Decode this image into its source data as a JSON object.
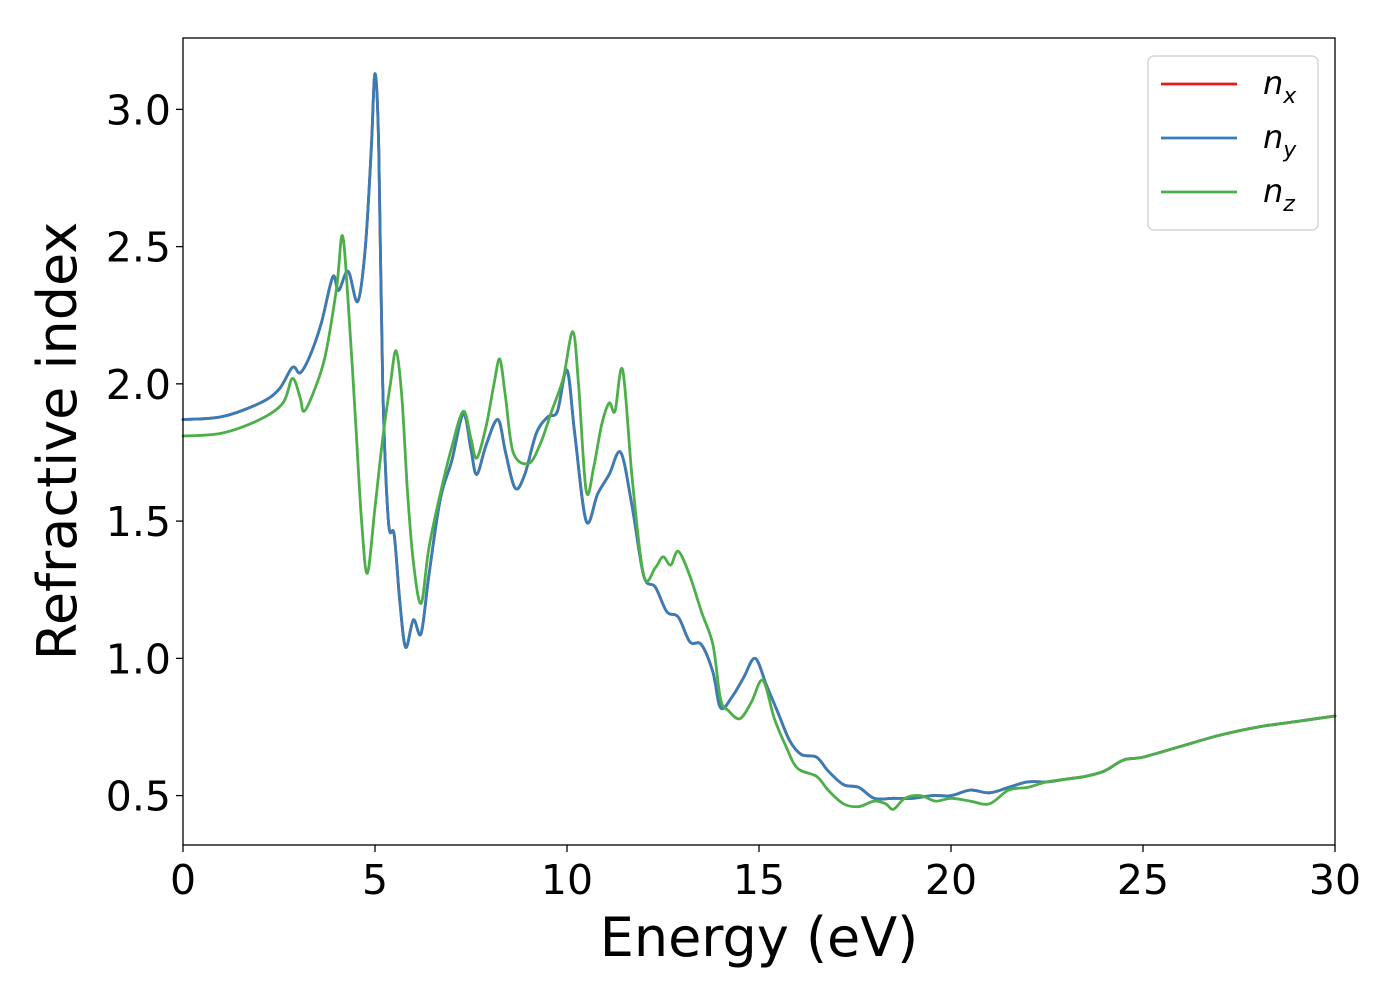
{
  "chart_data": {
    "type": "line",
    "xlabel": "Energy (eV)",
    "ylabel": "Refractive index",
    "xlim": [
      0,
      30
    ],
    "ylim": [
      0.32,
      3.26
    ],
    "xticks": [
      0,
      5,
      10,
      15,
      20,
      25,
      30
    ],
    "xtick_labels": [
      "0",
      "5",
      "10",
      "15",
      "20",
      "25",
      "30"
    ],
    "yticks": [
      0.5,
      1.0,
      1.5,
      2.0,
      2.5,
      3.0
    ],
    "ytick_labels": [
      "0.5",
      "1.0",
      "1.5",
      "2.0",
      "2.5",
      "3.0"
    ],
    "grid": false,
    "legend_position": "top-right",
    "series": [
      {
        "name": "n_x",
        "label_main": "n",
        "label_sub": "x",
        "color": "#e41a1c",
        "points": [
          [
            0,
            1.87
          ],
          [
            1,
            1.88
          ],
          [
            2,
            1.93
          ],
          [
            2.5,
            1.98
          ],
          [
            2.85,
            2.06
          ],
          [
            3.05,
            2.04
          ],
          [
            3.3,
            2.1
          ],
          [
            3.6,
            2.22
          ],
          [
            3.9,
            2.39
          ],
          [
            4.05,
            2.34
          ],
          [
            4.3,
            2.41
          ],
          [
            4.55,
            2.3
          ],
          [
            4.75,
            2.5
          ],
          [
            4.9,
            2.85
          ],
          [
            5.0,
            3.13
          ],
          [
            5.1,
            2.85
          ],
          [
            5.2,
            2.0
          ],
          [
            5.35,
            1.5
          ],
          [
            5.5,
            1.45
          ],
          [
            5.65,
            1.2
          ],
          [
            5.8,
            1.04
          ],
          [
            6.0,
            1.14
          ],
          [
            6.2,
            1.09
          ],
          [
            6.4,
            1.3
          ],
          [
            6.7,
            1.58
          ],
          [
            7.0,
            1.72
          ],
          [
            7.3,
            1.89
          ],
          [
            7.5,
            1.76
          ],
          [
            7.65,
            1.67
          ],
          [
            7.9,
            1.78
          ],
          [
            8.2,
            1.87
          ],
          [
            8.4,
            1.75
          ],
          [
            8.65,
            1.62
          ],
          [
            8.9,
            1.67
          ],
          [
            9.2,
            1.82
          ],
          [
            9.5,
            1.88
          ],
          [
            9.75,
            1.9
          ],
          [
            10.0,
            2.05
          ],
          [
            10.2,
            1.82
          ],
          [
            10.5,
            1.5
          ],
          [
            10.8,
            1.6
          ],
          [
            11.1,
            1.67
          ],
          [
            11.4,
            1.75
          ],
          [
            11.7,
            1.55
          ],
          [
            12.0,
            1.3
          ],
          [
            12.3,
            1.26
          ],
          [
            12.6,
            1.17
          ],
          [
            12.9,
            1.15
          ],
          [
            13.2,
            1.06
          ],
          [
            13.5,
            1.05
          ],
          [
            13.8,
            0.95
          ],
          [
            14.0,
            0.82
          ],
          [
            14.3,
            0.86
          ],
          [
            14.6,
            0.93
          ],
          [
            14.9,
            1.0
          ],
          [
            15.2,
            0.9
          ],
          [
            15.5,
            0.8
          ],
          [
            15.8,
            0.7
          ],
          [
            16.1,
            0.65
          ],
          [
            16.5,
            0.64
          ],
          [
            16.8,
            0.59
          ],
          [
            17.2,
            0.54
          ],
          [
            17.6,
            0.53
          ],
          [
            18.0,
            0.49
          ],
          [
            18.5,
            0.49
          ],
          [
            19.0,
            0.49
          ],
          [
            19.5,
            0.5
          ],
          [
            20.0,
            0.5
          ],
          [
            20.5,
            0.52
          ],
          [
            21.0,
            0.51
          ],
          [
            21.5,
            0.53
          ],
          [
            22.0,
            0.55
          ],
          [
            22.5,
            0.55
          ],
          [
            23.0,
            0.56
          ],
          [
            23.5,
            0.57
          ],
          [
            24.0,
            0.59
          ],
          [
            24.5,
            0.63
          ],
          [
            25.0,
            0.64
          ],
          [
            26.0,
            0.68
          ],
          [
            27.0,
            0.72
          ],
          [
            28.0,
            0.75
          ],
          [
            29.0,
            0.77
          ],
          [
            30.0,
            0.79
          ]
        ]
      },
      {
        "name": "n_y",
        "label_main": "n",
        "label_sub": "y",
        "color": "#377eb8",
        "points": [
          [
            0,
            1.87
          ],
          [
            1,
            1.88
          ],
          [
            2,
            1.93
          ],
          [
            2.5,
            1.98
          ],
          [
            2.85,
            2.06
          ],
          [
            3.05,
            2.04
          ],
          [
            3.3,
            2.1
          ],
          [
            3.6,
            2.22
          ],
          [
            3.9,
            2.39
          ],
          [
            4.05,
            2.34
          ],
          [
            4.3,
            2.41
          ],
          [
            4.55,
            2.3
          ],
          [
            4.75,
            2.5
          ],
          [
            4.9,
            2.85
          ],
          [
            5.0,
            3.13
          ],
          [
            5.1,
            2.85
          ],
          [
            5.2,
            2.0
          ],
          [
            5.35,
            1.5
          ],
          [
            5.5,
            1.45
          ],
          [
            5.65,
            1.2
          ],
          [
            5.8,
            1.04
          ],
          [
            6.0,
            1.14
          ],
          [
            6.2,
            1.09
          ],
          [
            6.4,
            1.3
          ],
          [
            6.7,
            1.58
          ],
          [
            7.0,
            1.72
          ],
          [
            7.3,
            1.89
          ],
          [
            7.5,
            1.76
          ],
          [
            7.65,
            1.67
          ],
          [
            7.9,
            1.78
          ],
          [
            8.2,
            1.87
          ],
          [
            8.4,
            1.75
          ],
          [
            8.65,
            1.62
          ],
          [
            8.9,
            1.67
          ],
          [
            9.2,
            1.82
          ],
          [
            9.5,
            1.88
          ],
          [
            9.75,
            1.9
          ],
          [
            10.0,
            2.05
          ],
          [
            10.2,
            1.82
          ],
          [
            10.5,
            1.5
          ],
          [
            10.8,
            1.6
          ],
          [
            11.1,
            1.67
          ],
          [
            11.4,
            1.75
          ],
          [
            11.7,
            1.55
          ],
          [
            12.0,
            1.3
          ],
          [
            12.3,
            1.26
          ],
          [
            12.6,
            1.17
          ],
          [
            12.9,
            1.15
          ],
          [
            13.2,
            1.06
          ],
          [
            13.5,
            1.05
          ],
          [
            13.8,
            0.95
          ],
          [
            14.0,
            0.82
          ],
          [
            14.3,
            0.86
          ],
          [
            14.6,
            0.93
          ],
          [
            14.9,
            1.0
          ],
          [
            15.2,
            0.9
          ],
          [
            15.5,
            0.8
          ],
          [
            15.8,
            0.7
          ],
          [
            16.1,
            0.65
          ],
          [
            16.5,
            0.64
          ],
          [
            16.8,
            0.59
          ],
          [
            17.2,
            0.54
          ],
          [
            17.6,
            0.53
          ],
          [
            18.0,
            0.49
          ],
          [
            18.5,
            0.49
          ],
          [
            19.0,
            0.49
          ],
          [
            19.5,
            0.5
          ],
          [
            20.0,
            0.5
          ],
          [
            20.5,
            0.52
          ],
          [
            21.0,
            0.51
          ],
          [
            21.5,
            0.53
          ],
          [
            22.0,
            0.55
          ],
          [
            22.5,
            0.55
          ],
          [
            23.0,
            0.56
          ],
          [
            23.5,
            0.57
          ],
          [
            24.0,
            0.59
          ],
          [
            24.5,
            0.63
          ],
          [
            25.0,
            0.64
          ],
          [
            26.0,
            0.68
          ],
          [
            27.0,
            0.72
          ],
          [
            28.0,
            0.75
          ],
          [
            29.0,
            0.77
          ],
          [
            30.0,
            0.79
          ]
        ]
      },
      {
        "name": "n_z",
        "label_main": "n",
        "label_sub": "z",
        "color": "#4daf4a",
        "points": [
          [
            0,
            1.81
          ],
          [
            1,
            1.82
          ],
          [
            2,
            1.87
          ],
          [
            2.6,
            1.93
          ],
          [
            2.85,
            2.02
          ],
          [
            3.05,
            1.95
          ],
          [
            3.15,
            1.9
          ],
          [
            3.4,
            1.97
          ],
          [
            3.7,
            2.1
          ],
          [
            4.0,
            2.35
          ],
          [
            4.15,
            2.54
          ],
          [
            4.3,
            2.3
          ],
          [
            4.5,
            1.85
          ],
          [
            4.65,
            1.5
          ],
          [
            4.8,
            1.31
          ],
          [
            5.0,
            1.55
          ],
          [
            5.2,
            1.8
          ],
          [
            5.4,
            2.0
          ],
          [
            5.55,
            2.12
          ],
          [
            5.7,
            1.95
          ],
          [
            5.85,
            1.6
          ],
          [
            6.0,
            1.35
          ],
          [
            6.2,
            1.2
          ],
          [
            6.4,
            1.4
          ],
          [
            6.7,
            1.6
          ],
          [
            7.0,
            1.77
          ],
          [
            7.3,
            1.9
          ],
          [
            7.5,
            1.8
          ],
          [
            7.65,
            1.73
          ],
          [
            7.9,
            1.85
          ],
          [
            8.1,
            2.0
          ],
          [
            8.25,
            2.09
          ],
          [
            8.4,
            1.95
          ],
          [
            8.6,
            1.75
          ],
          [
            9.0,
            1.71
          ],
          [
            9.3,
            1.78
          ],
          [
            9.6,
            1.9
          ],
          [
            9.9,
            2.02
          ],
          [
            10.15,
            2.19
          ],
          [
            10.3,
            2.0
          ],
          [
            10.5,
            1.61
          ],
          [
            10.7,
            1.7
          ],
          [
            10.9,
            1.85
          ],
          [
            11.1,
            1.93
          ],
          [
            11.25,
            1.9
          ],
          [
            11.45,
            2.05
          ],
          [
            11.7,
            1.65
          ],
          [
            12.0,
            1.3
          ],
          [
            12.3,
            1.33
          ],
          [
            12.5,
            1.37
          ],
          [
            12.7,
            1.34
          ],
          [
            12.9,
            1.39
          ],
          [
            13.2,
            1.3
          ],
          [
            13.5,
            1.17
          ],
          [
            13.8,
            1.05
          ],
          [
            14.0,
            0.85
          ],
          [
            14.2,
            0.81
          ],
          [
            14.5,
            0.78
          ],
          [
            14.8,
            0.84
          ],
          [
            15.1,
            0.92
          ],
          [
            15.4,
            0.78
          ],
          [
            15.7,
            0.68
          ],
          [
            16.0,
            0.6
          ],
          [
            16.5,
            0.57
          ],
          [
            16.8,
            0.52
          ],
          [
            17.2,
            0.47
          ],
          [
            17.6,
            0.46
          ],
          [
            18.0,
            0.48
          ],
          [
            18.3,
            0.47
          ],
          [
            18.5,
            0.45
          ],
          [
            18.8,
            0.49
          ],
          [
            19.2,
            0.5
          ],
          [
            19.6,
            0.48
          ],
          [
            20.0,
            0.49
          ],
          [
            20.5,
            0.48
          ],
          [
            21.0,
            0.47
          ],
          [
            21.5,
            0.52
          ],
          [
            22.0,
            0.53
          ],
          [
            22.5,
            0.55
          ],
          [
            23.0,
            0.56
          ],
          [
            23.5,
            0.57
          ],
          [
            24.0,
            0.59
          ],
          [
            24.5,
            0.63
          ],
          [
            25.0,
            0.64
          ],
          [
            26.0,
            0.68
          ],
          [
            27.0,
            0.72
          ],
          [
            28.0,
            0.75
          ],
          [
            29.0,
            0.77
          ],
          [
            30.0,
            0.79
          ]
        ]
      }
    ]
  }
}
